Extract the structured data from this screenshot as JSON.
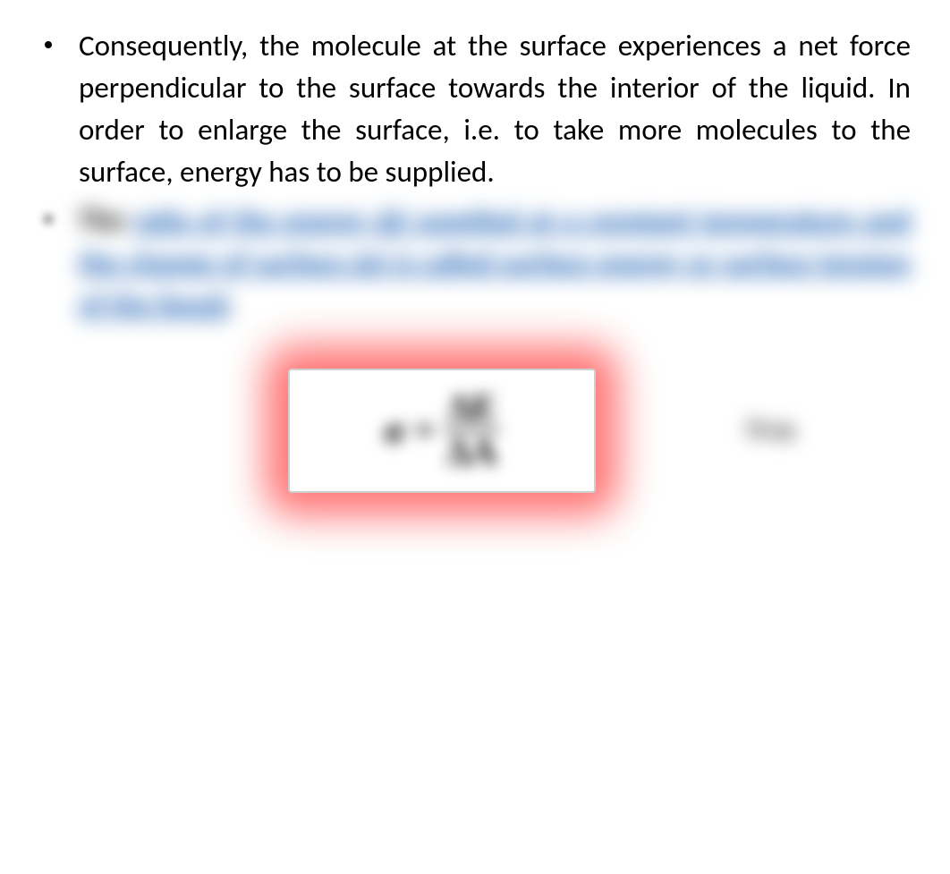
{
  "bullets": [
    {
      "text": "Consequently, the molecule at the surface experiences a net force perpendicular to the surface towards the interior of the liquid. In order to enlarge the surface, i.e. to take more molecules to the surface, energy has to be supplied."
    },
    {
      "lead": "The ",
      "link_text": "ratio of the energy ΔE supplied at a constant temperature and the change of surface ΔA is called surface energy or surface tension of the liquid",
      "trailing": "."
    }
  ],
  "formula": {
    "lhs": "σ =",
    "numerator": "ΔE",
    "denominator": "ΔA"
  },
  "side_note": "N/m",
  "colors": {
    "text": "#000000",
    "link": "#1b5fb3",
    "glow": "#ff2a2a",
    "box_border": "#cfcfcf",
    "background": "#ffffff"
  }
}
